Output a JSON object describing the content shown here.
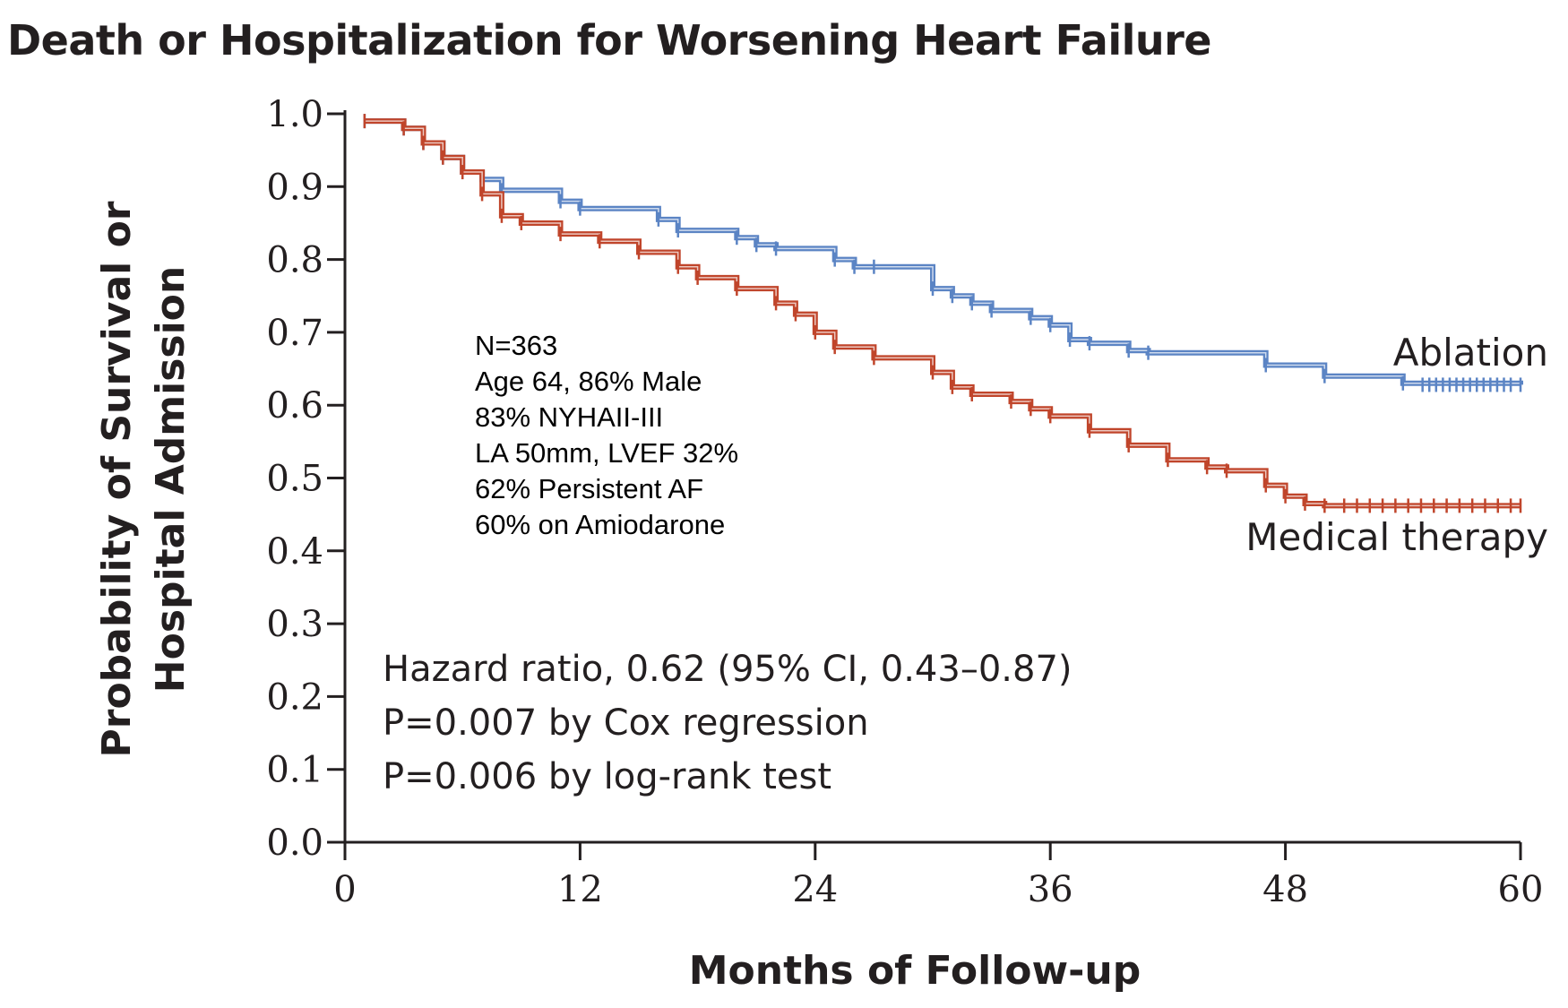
{
  "title": "Death or Hospitalization for Worsening Heart Failure",
  "chart_data": {
    "type": "line",
    "title": "Death or Hospitalization for Worsening Heart Failure",
    "xlabel": "Months of Follow-up",
    "ylabel_lines": [
      "Probability of Survival or",
      "Hospital Admission"
    ],
    "xlim": [
      0,
      60
    ],
    "ylim": [
      0,
      1.0
    ],
    "x_ticks": [
      "0",
      "12",
      "24",
      "36",
      "48",
      "60"
    ],
    "y_ticks": [
      "0.0",
      "0.1",
      "0.2",
      "0.3",
      "0.4",
      "0.5",
      "0.6",
      "0.7",
      "0.8",
      "0.9",
      "1.0"
    ],
    "grid": false,
    "step": true,
    "series": [
      {
        "name": "Ablation",
        "color": "#5b84c4",
        "x": [
          1,
          3,
          4,
          5,
          6,
          7,
          8,
          11,
          12,
          16,
          17,
          20,
          21,
          22,
          25,
          26,
          27,
          30,
          31,
          32,
          33,
          35,
          36,
          37,
          38,
          40,
          41,
          47,
          50,
          54,
          60
        ],
        "y": [
          0.99,
          0.98,
          0.96,
          0.94,
          0.92,
          0.91,
          0.895,
          0.88,
          0.87,
          0.855,
          0.84,
          0.83,
          0.82,
          0.815,
          0.8,
          0.79,
          0.79,
          0.76,
          0.75,
          0.74,
          0.73,
          0.72,
          0.71,
          0.69,
          0.685,
          0.675,
          0.672,
          0.655,
          0.64,
          0.63,
          0.628
        ]
      },
      {
        "name": "Medical therapy",
        "color": "#c0452b",
        "x": [
          1,
          3,
          4,
          5,
          6,
          7,
          8,
          9,
          11,
          13,
          15,
          17,
          18,
          20,
          22,
          23,
          24,
          25,
          27,
          30,
          31,
          32,
          34,
          35,
          36,
          38,
          40,
          42,
          44,
          45,
          47,
          48,
          49,
          50,
          60
        ],
        "y": [
          0.99,
          0.98,
          0.96,
          0.94,
          0.92,
          0.89,
          0.86,
          0.85,
          0.835,
          0.825,
          0.81,
          0.79,
          0.775,
          0.76,
          0.74,
          0.725,
          0.7,
          0.68,
          0.665,
          0.645,
          0.625,
          0.615,
          0.605,
          0.595,
          0.585,
          0.565,
          0.545,
          0.525,
          0.515,
          0.51,
          0.49,
          0.475,
          0.465,
          0.462,
          0.462
        ]
      }
    ],
    "annotations": {
      "stats": [
        "Hazard ratio, 0.62 (95% CI, 0.43–0.87)",
        "P=0.007 by Cox regression",
        "P=0.006 by log-rank test"
      ],
      "baseline": [
        "N=363",
        "Age 64, 86% Male",
        "83% NYHAII-III",
        "LA 50mm, LVEF 32%",
        "62% Persistent AF",
        "60% on Amiodarone"
      ]
    }
  }
}
